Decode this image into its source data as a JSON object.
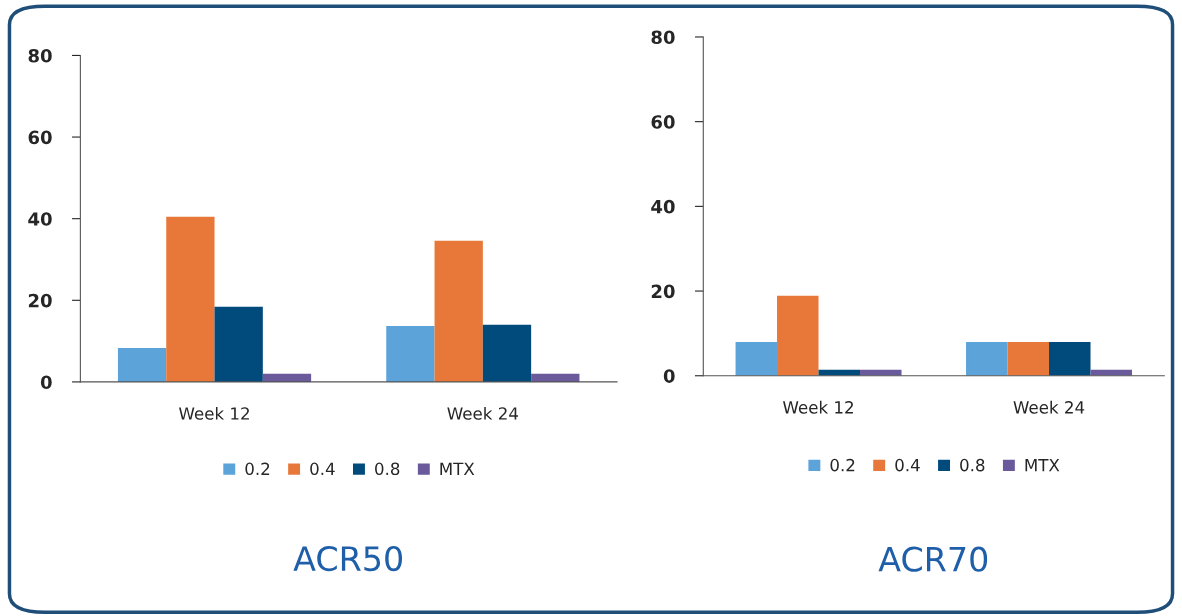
{
  "chart_data": [
    {
      "type": "bar",
      "title": "ACR50",
      "categories": [
        "Week 12",
        "Week 24"
      ],
      "series": [
        {
          "name": "0.2",
          "color": "#5ba3d9",
          "values": [
            8.3,
            13.7
          ]
        },
        {
          "name": "0.4",
          "color": "#e8773a",
          "values": [
            40.5,
            34.6
          ]
        },
        {
          "name": "0.8",
          "color": "#004a7c",
          "values": [
            18.4,
            14.0
          ]
        },
        {
          "name": "MTX",
          "color": "#6a5a9c",
          "values": [
            2.0,
            2.0
          ]
        }
      ],
      "ylim": [
        0,
        80
      ],
      "yticks": [
        0,
        20,
        40,
        60,
        80
      ],
      "grid": false,
      "legend": "bottom"
    },
    {
      "type": "bar",
      "title": "ACR70",
      "categories": [
        "Week 12",
        "Week 24"
      ],
      "series": [
        {
          "name": "0.2",
          "color": "#5ba3d9",
          "values": [
            8.0,
            8.0
          ]
        },
        {
          "name": "0.4",
          "color": "#e8773a",
          "values": [
            18.9,
            8.0
          ]
        },
        {
          "name": "0.8",
          "color": "#004a7c",
          "values": [
            1.4,
            8.0
          ]
        },
        {
          "name": "MTX",
          "color": "#6a5a9c",
          "values": [
            1.4,
            1.4
          ]
        }
      ],
      "ylim": [
        0,
        80
      ],
      "yticks": [
        0,
        20,
        40,
        60,
        80
      ],
      "grid": false,
      "legend": "bottom"
    }
  ]
}
